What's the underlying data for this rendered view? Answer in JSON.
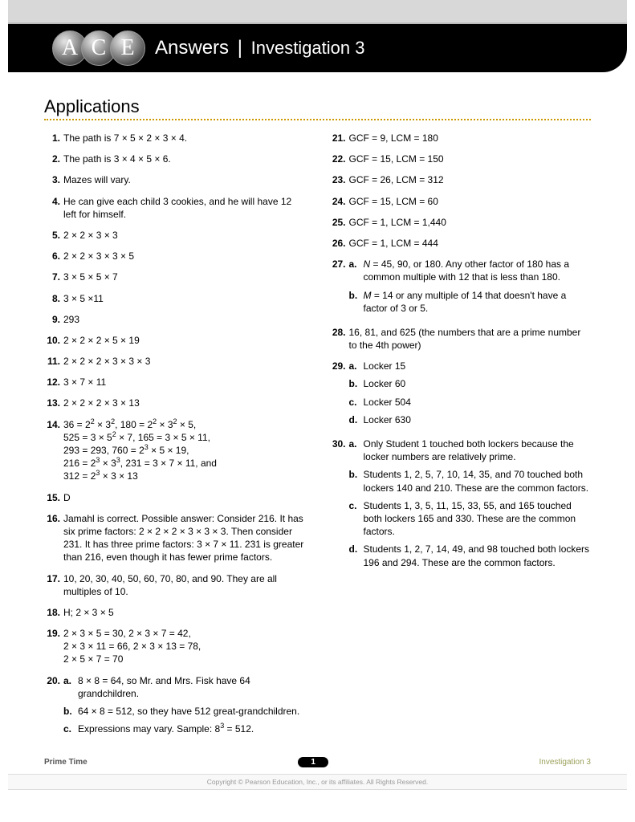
{
  "header": {
    "logo_letters": [
      "A",
      "C",
      "E"
    ],
    "title": "Answers",
    "subtitle": "Investigation 3"
  },
  "section_title": "Applications",
  "left_items": [
    {
      "n": "1.",
      "t": "The path is 7 × 5 × 2 × 3 × 4."
    },
    {
      "n": "2.",
      "t": "The path is 3 × 4 × 5 × 6."
    },
    {
      "n": "3.",
      "t": "Mazes will vary."
    },
    {
      "n": "4.",
      "t": "He can give each child 3 cookies, and he will have 12 left for himself."
    },
    {
      "n": "5.",
      "t": "2 × 2 × 3 × 3"
    },
    {
      "n": "6.",
      "t": "2 × 2 × 3 × 3 × 5"
    },
    {
      "n": "7.",
      "t": "3 × 5 × 5 × 7"
    },
    {
      "n": "8.",
      "t": "3 × 5 ×11"
    },
    {
      "n": "9.",
      "t": "293"
    },
    {
      "n": "10.",
      "t": "2 × 2 × 2 × 5 × 19"
    },
    {
      "n": "11.",
      "t": "2 × 2 × 2 × 3 × 3 × 3"
    },
    {
      "n": "12.",
      "t": "3 × 7 × 11"
    },
    {
      "n": "13.",
      "t": "2 × 2 × 2 × 3 × 13"
    },
    {
      "n": "14.",
      "html": "36 = 2<sup>2</sup> × 3<sup>2</sup>, 180 = 2<sup>2</sup> × 3<sup>2</sup> × 5,<br>525 = 3 × 5<sup>2</sup> × 7, 165 = 3 × 5 × 11,<br>293 = 293, 760 = 2<sup>3</sup> × 5 × 19,<br>216 = 2<sup>3</sup> × 3<sup>3</sup>, 231 = 3 × 7 × 11, and<br>312 = 2<sup>3</sup> × 3 × 13"
    },
    {
      "n": "15.",
      "t": "D"
    },
    {
      "n": "16.",
      "t": "Jamahl is correct. Possible answer: Consider 216. It has six prime factors: 2 × 2 × 2 × 3 × 3 × 3. Then consider 231. It has three prime factors: 3 × 7 × 11. 231 is greater than 216, even though it has fewer prime factors."
    },
    {
      "n": "17.",
      "t": "10, 20, 30, 40, 50, 60, 70, 80, and 90. They are all multiples of 10."
    },
    {
      "n": "18.",
      "t": "H; 2 × 3 × 5"
    },
    {
      "n": "19.",
      "html": "2 × 3 × 5 = 30, 2 × 3 × 7 = 42,<br>2 × 3 × 11 = 66, 2 × 3 × 13 = 78,<br>2 × 5 × 7 = 70"
    },
    {
      "n": "20.",
      "subs": [
        {
          "l": "a.",
          "t": "8 × 8 = 64, so Mr. and Mrs. Fisk have 64 grandchildren."
        },
        {
          "l": "b.",
          "t": "64 × 8 = 512, so they have 512 great-grandchildren."
        },
        {
          "l": "c.",
          "html": "Expressions may vary. Sample: 8<sup>3</sup> = 512."
        }
      ]
    }
  ],
  "right_items": [
    {
      "n": "21.",
      "t": "GCF = 9, LCM = 180"
    },
    {
      "n": "22.",
      "t": "GCF = 15, LCM = 150"
    },
    {
      "n": "23.",
      "t": "GCF = 26, LCM = 312"
    },
    {
      "n": "24.",
      "t": "GCF = 15, LCM = 60"
    },
    {
      "n": "25.",
      "t": "GCF = 1, LCM = 1,440"
    },
    {
      "n": "26.",
      "t": "GCF = 1, LCM = 444"
    },
    {
      "n": "27.",
      "subs": [
        {
          "l": "a.",
          "html": "<em>N</em> = 45, 90, or 180. Any other factor of 180 has a common multiple with 12 that is less than 180."
        },
        {
          "l": "b.",
          "html": "<em>M</em> = 14 or any multiple of 14 that doesn't have a factor of 3 or 5."
        }
      ]
    },
    {
      "n": "28.",
      "t": "16, 81, and 625 (the numbers that are a prime number to the 4th power)"
    },
    {
      "n": "29.",
      "subs": [
        {
          "l": "a.",
          "t": "Locker 15"
        },
        {
          "l": "b.",
          "t": "Locker 60"
        },
        {
          "l": "c.",
          "t": "Locker 504"
        },
        {
          "l": "d.",
          "t": "Locker 630"
        }
      ]
    },
    {
      "n": "30.",
      "subs": [
        {
          "l": "a.",
          "t": "Only Student 1 touched both lockers because the locker numbers are relatively prime."
        },
        {
          "l": "b.",
          "t": "Students 1, 2, 5, 7, 10, 14, 35, and 70 touched both lockers 140 and 210. These are the common factors."
        },
        {
          "l": "c.",
          "t": "Students 1, 3, 5, 11, 15, 33, 55, and 165 touched both lockers 165 and 330. These are the common factors."
        },
        {
          "l": "d.",
          "t": "Students 1, 2, 7, 14, 49, and 98 touched both lockers 196 and 294. These are the common factors."
        }
      ]
    }
  ],
  "footer": {
    "left": "Prime Time",
    "page": "1",
    "right": "Investigation 3",
    "copyright": "Copyright © Pearson Education, Inc., or its affiliates. All Rights Reserved."
  }
}
